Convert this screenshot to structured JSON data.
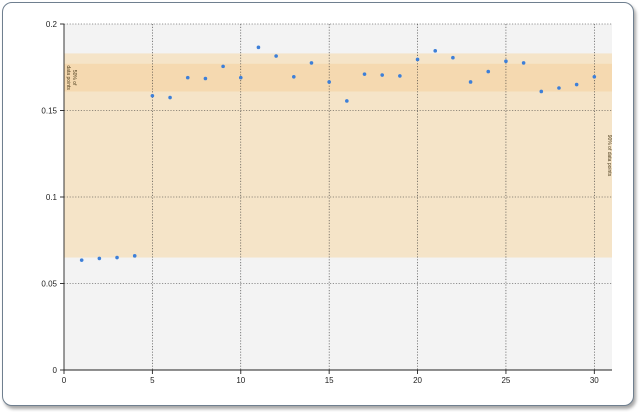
{
  "chart_data": {
    "type": "scatter",
    "title": "",
    "xlabel": "",
    "ylabel": "",
    "xlim": [
      0,
      31
    ],
    "ylim": [
      0,
      0.2
    ],
    "x_ticks": [
      0,
      5,
      10,
      15,
      20,
      25,
      30
    ],
    "x_tick_labels": [
      "0",
      "5",
      "10",
      "15",
      "20",
      "25",
      "30"
    ],
    "y_ticks": [
      0,
      0.05,
      0.1,
      0.15,
      0.2
    ],
    "y_tick_labels": [
      "0",
      "0.05",
      "0.1",
      "0.15",
      "0.2"
    ],
    "grid": true,
    "grid_style": "dotted",
    "colors": {
      "plot_background": "#f3f3f3",
      "band_90": "#f5e4c8",
      "band_50": "#f5d9b0",
      "point": "#3d7fd8",
      "grid": "#333333"
    },
    "bands": [
      {
        "label_lines": [
          "90% of data points"
        ],
        "y_range": [
          0.065,
          0.183
        ],
        "label_side": "right"
      },
      {
        "label_lines": [
          "50% of",
          "data points"
        ],
        "y_range": [
          0.161,
          0.177
        ],
        "label_side": "left"
      }
    ],
    "series": [
      {
        "points": [
          {
            "x": 1,
            "y": 0.0635
          },
          {
            "x": 2,
            "y": 0.0645
          },
          {
            "x": 3,
            "y": 0.065
          },
          {
            "x": 4,
            "y": 0.066
          },
          {
            "x": 5,
            "y": 0.1585
          },
          {
            "x": 6,
            "y": 0.1575
          },
          {
            "x": 7,
            "y": 0.169
          },
          {
            "x": 8,
            "y": 0.1685
          },
          {
            "x": 9,
            "y": 0.1755
          },
          {
            "x": 10,
            "y": 0.169
          },
          {
            "x": 11,
            "y": 0.1865
          },
          {
            "x": 12,
            "y": 0.1815
          },
          {
            "x": 13,
            "y": 0.1695
          },
          {
            "x": 14,
            "y": 0.1775
          },
          {
            "x": 15,
            "y": 0.1665
          },
          {
            "x": 16,
            "y": 0.1555
          },
          {
            "x": 17,
            "y": 0.171
          },
          {
            "x": 18,
            "y": 0.1705
          },
          {
            "x": 19,
            "y": 0.17
          },
          {
            "x": 20,
            "y": 0.1795
          },
          {
            "x": 21,
            "y": 0.1845
          },
          {
            "x": 22,
            "y": 0.1805
          },
          {
            "x": 23,
            "y": 0.1665
          },
          {
            "x": 24,
            "y": 0.1725
          },
          {
            "x": 25,
            "y": 0.1785
          },
          {
            "x": 26,
            "y": 0.1775
          },
          {
            "x": 27,
            "y": 0.161
          },
          {
            "x": 28,
            "y": 0.163
          },
          {
            "x": 29,
            "y": 0.165
          },
          {
            "x": 30,
            "y": 0.1695
          }
        ]
      }
    ]
  }
}
